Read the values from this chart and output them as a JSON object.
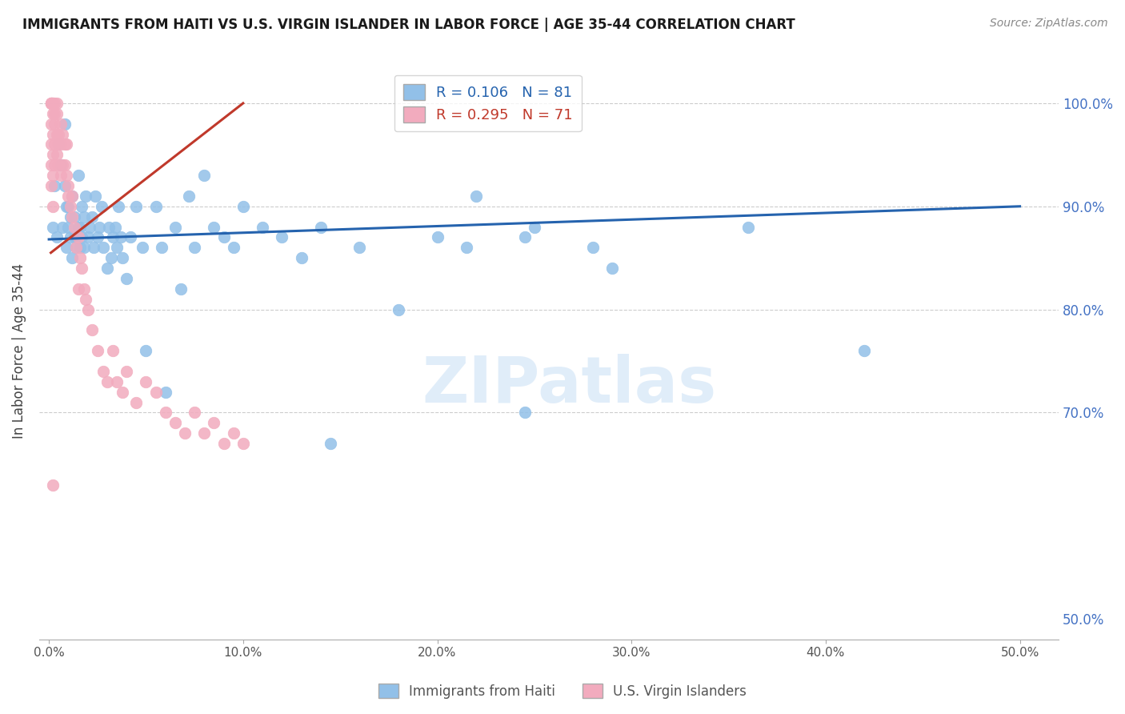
{
  "title": "IMMIGRANTS FROM HAITI VS U.S. VIRGIN ISLANDER IN LABOR FORCE | AGE 35-44 CORRELATION CHART",
  "source": "Source: ZipAtlas.com",
  "ylabel": "In Labor Force | Age 35-44",
  "x_ticks": [
    0.0,
    0.1,
    0.2,
    0.3,
    0.4,
    0.5
  ],
  "x_tick_labels": [
    "0.0%",
    "10.0%",
    "20.0%",
    "30.0%",
    "40.0%",
    "50.0%"
  ],
  "y_ticks": [
    0.5,
    0.6,
    0.7,
    0.8,
    0.9,
    1.0
  ],
  "y_tick_labels_right": [
    "50.0%",
    "",
    "70.0%",
    "80.0%",
    "90.0%",
    "100.0%"
  ],
  "xlim": [
    -0.005,
    0.52
  ],
  "ylim": [
    0.48,
    1.04
  ],
  "blue_R": 0.106,
  "blue_N": 81,
  "pink_R": 0.295,
  "pink_N": 71,
  "blue_color": "#92C0E8",
  "pink_color": "#F2ABBE",
  "blue_line_color": "#2563AE",
  "pink_line_color": "#C0392B",
  "legend_label_blue": "Immigrants from Haiti",
  "legend_label_pink": "U.S. Virgin Islanders",
  "watermark": "ZIPatlas",
  "blue_scatter_x": [
    0.002,
    0.003,
    0.004,
    0.005,
    0.006,
    0.007,
    0.008,
    0.008,
    0.009,
    0.009,
    0.01,
    0.01,
    0.011,
    0.011,
    0.012,
    0.012,
    0.013,
    0.013,
    0.014,
    0.014,
    0.015,
    0.015,
    0.016,
    0.016,
    0.017,
    0.017,
    0.018,
    0.018,
    0.019,
    0.02,
    0.021,
    0.022,
    0.023,
    0.024,
    0.025,
    0.026,
    0.027,
    0.028,
    0.03,
    0.031,
    0.032,
    0.033,
    0.034,
    0.035,
    0.036,
    0.037,
    0.038,
    0.04,
    0.042,
    0.045,
    0.048,
    0.05,
    0.055,
    0.058,
    0.06,
    0.065,
    0.068,
    0.072,
    0.075,
    0.08,
    0.085,
    0.09,
    0.095,
    0.1,
    0.11,
    0.12,
    0.13,
    0.14,
    0.16,
    0.18,
    0.2,
    0.215,
    0.22,
    0.245,
    0.25,
    0.28,
    0.29,
    0.36,
    0.42,
    0.245,
    0.145
  ],
  "blue_scatter_y": [
    0.88,
    0.92,
    0.87,
    0.96,
    0.94,
    0.88,
    0.92,
    0.98,
    0.86,
    0.9,
    0.88,
    0.9,
    0.87,
    0.89,
    0.85,
    0.91,
    0.87,
    0.89,
    0.87,
    0.86,
    0.88,
    0.93,
    0.86,
    0.88,
    0.87,
    0.9,
    0.89,
    0.86,
    0.91,
    0.87,
    0.88,
    0.89,
    0.86,
    0.91,
    0.87,
    0.88,
    0.9,
    0.86,
    0.84,
    0.88,
    0.85,
    0.87,
    0.88,
    0.86,
    0.9,
    0.87,
    0.85,
    0.83,
    0.87,
    0.9,
    0.86,
    0.76,
    0.9,
    0.86,
    0.72,
    0.88,
    0.82,
    0.91,
    0.86,
    0.93,
    0.88,
    0.87,
    0.86,
    0.9,
    0.88,
    0.87,
    0.85,
    0.88,
    0.86,
    0.8,
    0.87,
    0.86,
    0.91,
    0.87,
    0.88,
    0.86,
    0.84,
    0.88,
    0.76,
    0.7,
    0.67
  ],
  "pink_scatter_x": [
    0.001,
    0.001,
    0.001,
    0.001,
    0.001,
    0.001,
    0.001,
    0.001,
    0.002,
    0.002,
    0.002,
    0.002,
    0.002,
    0.002,
    0.002,
    0.003,
    0.003,
    0.003,
    0.003,
    0.003,
    0.004,
    0.004,
    0.004,
    0.004,
    0.005,
    0.005,
    0.005,
    0.006,
    0.006,
    0.006,
    0.007,
    0.007,
    0.008,
    0.008,
    0.009,
    0.009,
    0.01,
    0.01,
    0.011,
    0.012,
    0.012,
    0.013,
    0.014,
    0.015,
    0.015,
    0.016,
    0.017,
    0.018,
    0.019,
    0.02,
    0.022,
    0.025,
    0.028,
    0.03,
    0.033,
    0.035,
    0.038,
    0.04,
    0.045,
    0.05,
    0.055,
    0.06,
    0.065,
    0.07,
    0.075,
    0.08,
    0.085,
    0.09,
    0.095,
    0.1,
    0.002
  ],
  "pink_scatter_y": [
    1.0,
    1.0,
    1.0,
    1.0,
    0.98,
    0.96,
    0.94,
    0.92,
    1.0,
    1.0,
    0.99,
    0.97,
    0.95,
    0.93,
    0.9,
    1.0,
    0.99,
    0.98,
    0.96,
    0.94,
    1.0,
    0.99,
    0.97,
    0.95,
    0.97,
    0.96,
    0.94,
    0.98,
    0.96,
    0.93,
    0.97,
    0.94,
    0.96,
    0.94,
    0.96,
    0.93,
    0.91,
    0.92,
    0.9,
    0.91,
    0.89,
    0.88,
    0.86,
    0.87,
    0.82,
    0.85,
    0.84,
    0.82,
    0.81,
    0.8,
    0.78,
    0.76,
    0.74,
    0.73,
    0.76,
    0.73,
    0.72,
    0.74,
    0.71,
    0.73,
    0.72,
    0.7,
    0.69,
    0.68,
    0.7,
    0.68,
    0.69,
    0.67,
    0.68,
    0.67,
    0.63
  ],
  "blue_trend_x": [
    0.0,
    0.5
  ],
  "blue_trend_y": [
    0.868,
    0.9
  ],
  "pink_trend_x": [
    0.001,
    0.1
  ],
  "pink_trend_y": [
    0.855,
    1.0
  ]
}
